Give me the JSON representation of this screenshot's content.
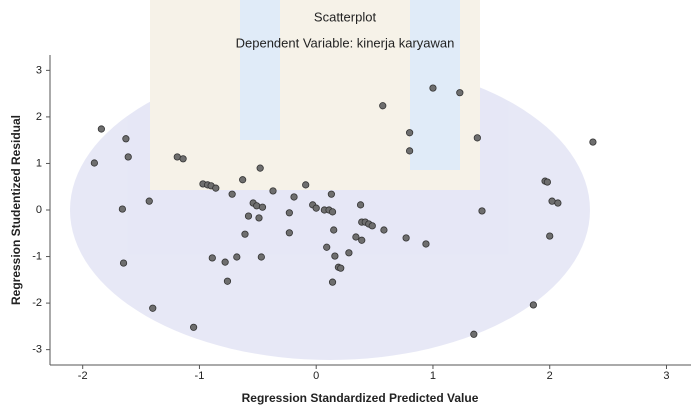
{
  "chart_data": {
    "type": "scatter",
    "title": "Scatterplot",
    "subtitle": "Dependent Variable: kinerja karyawan",
    "x_label": "Regression Standardized Predicted Value",
    "y_label": "Regression Studentized Residual",
    "color": "#6e6e6e",
    "x": [
      -1.84,
      -1.9,
      -1.63,
      -1.61,
      -1.66,
      -1.65,
      -1.43,
      -1.4,
      -1.19,
      -1.14,
      -1.05,
      -0.97,
      -0.93,
      -0.9,
      -0.86,
      -0.89,
      -0.78,
      -0.76,
      -0.72,
      -0.68,
      -0.63,
      -0.61,
      -0.58,
      -0.54,
      -0.51,
      -0.49,
      -0.48,
      -0.46,
      -0.47,
      -0.37,
      -0.23,
      -0.23,
      -0.19,
      -0.09,
      -0.03,
      0.0,
      0.07,
      0.11,
      0.14,
      0.09,
      0.13,
      0.14,
      0.15,
      0.16,
      0.19,
      0.21,
      0.28,
      0.34,
      0.38,
      0.39,
      0.39,
      0.42,
      0.45,
      0.48,
      0.57,
      0.58,
      0.77,
      0.8,
      0.8,
      0.94,
      1.0,
      1.23,
      1.38,
      1.42,
      1.35,
      1.86,
      1.96,
      1.98,
      2.0,
      2.02,
      2.07,
      2.37
    ],
    "y": [
      1.74,
      1.01,
      1.53,
      1.14,
      0.02,
      -1.14,
      0.19,
      -2.11,
      1.14,
      1.1,
      -2.52,
      0.56,
      0.54,
      0.52,
      0.47,
      -1.03,
      -1.12,
      -1.53,
      0.34,
      -1.01,
      0.65,
      -0.52,
      -0.13,
      0.15,
      0.09,
      -0.17,
      0.9,
      0.06,
      -1.01,
      0.41,
      -0.06,
      -0.49,
      0.28,
      0.54,
      0.11,
      0.04,
      0.0,
      0.0,
      -0.04,
      -0.8,
      0.34,
      -1.55,
      -0.43,
      -0.99,
      -1.23,
      -1.25,
      -0.92,
      -0.58,
      0.11,
      -0.26,
      -0.65,
      -0.26,
      -0.3,
      -0.34,
      2.24,
      -0.43,
      -0.6,
      1.66,
      1.27,
      -0.73,
      2.62,
      2.52,
      1.55,
      -0.02,
      -2.67,
      -2.04,
      0.62,
      0.6,
      -0.56,
      0.19,
      0.15,
      1.46
    ],
    "xlim": [
      -2.28,
      3.21
    ],
    "ylim": [
      -3.33,
      3.33
    ],
    "xticks": [
      -2,
      -1,
      0,
      1,
      2,
      3
    ],
    "yticks": [
      -3,
      -2,
      -1,
      0,
      1,
      2,
      3
    ]
  }
}
